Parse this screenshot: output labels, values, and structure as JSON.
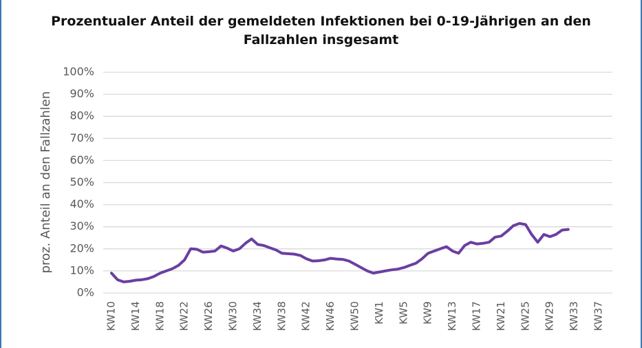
{
  "chart_data": {
    "type": "line",
    "title": "Prozentualer Anteil der gemeldeten Infektionen bei 0-19-Jährigen an den Fallzahlen insgesamt",
    "y_label": "proz. Anteil an den Fallzahlen",
    "categories": [
      "KW10",
      null,
      null,
      null,
      "KW14",
      null,
      null,
      null,
      "KW18",
      null,
      null,
      null,
      "KW22",
      null,
      null,
      null,
      "KW26",
      null,
      null,
      null,
      "KW30",
      null,
      null,
      null,
      "KW34",
      null,
      null,
      null,
      "KW38",
      null,
      null,
      null,
      "KW42",
      null,
      null,
      null,
      "KW46",
      null,
      null,
      null,
      "KW50",
      null,
      null,
      null,
      "KW1",
      null,
      null,
      null,
      "KW5",
      null,
      null,
      null,
      "KW9",
      null,
      null,
      null,
      "KW13",
      null,
      null,
      null,
      "KW17",
      null,
      null,
      null,
      "KW21",
      null,
      null,
      null,
      "KW25",
      null,
      null,
      null,
      "KW29",
      null,
      null,
      null,
      "KW33",
      null,
      null,
      null,
      "KW37"
    ],
    "series": [
      {
        "color": "#6a3fa0",
        "values": [
          9,
          6,
          5,
          5.3,
          5.8,
          6,
          6.5,
          7.5,
          9,
          10,
          11,
          12.5,
          15,
          20,
          19.8,
          18.5,
          18.7,
          19,
          21.3,
          20.3,
          19,
          20,
          22.5,
          24.5,
          22,
          21.5,
          20.5,
          19.5,
          18,
          17.8,
          17.6,
          17,
          15.5,
          14.5,
          14.6,
          15,
          15.7,
          15.4,
          15.2,
          14.5,
          13,
          11.5,
          10,
          9,
          9.5,
          10,
          10.5,
          10.8,
          11.5,
          12.5,
          13.5,
          15.5,
          18,
          19,
          20,
          21,
          19,
          18,
          21.5,
          23,
          22.2,
          22.5,
          23,
          25.3,
          25.8,
          28,
          30.5,
          31.5,
          31,
          26.5,
          23,
          26.5,
          25.5,
          26.5,
          28.5,
          28.8,
          null,
          null,
          null,
          null,
          null
        ]
      }
    ],
    "ylim": [
      0,
      100
    ],
    "yticks": [
      {
        "value": 0,
        "label": "0%"
      },
      {
        "value": 10,
        "label": "10%"
      },
      {
        "value": 20,
        "label": "20%"
      },
      {
        "value": 30,
        "label": "30%"
      },
      {
        "value": 40,
        "label": "40%"
      },
      {
        "value": 50,
        "label": "50%"
      },
      {
        "value": 60,
        "label": "60%"
      },
      {
        "value": 70,
        "label": "70%"
      },
      {
        "value": 80,
        "label": "80%"
      },
      {
        "value": 90,
        "label": "90%"
      },
      {
        "value": 100,
        "label": "100%"
      }
    ],
    "grid": true
  }
}
